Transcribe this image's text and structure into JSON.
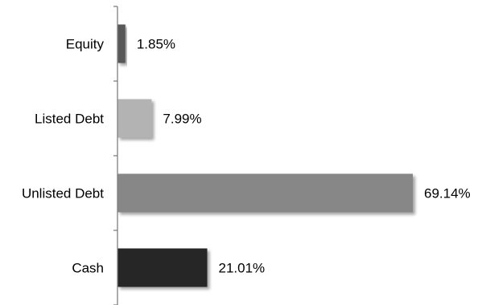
{
  "chart_data": {
    "type": "bar",
    "orientation": "horizontal",
    "categories": [
      "Equity",
      "Listed Debt",
      "Unlisted Debt",
      "Cash"
    ],
    "values": [
      1.85,
      7.99,
      69.14,
      21.01
    ],
    "value_labels": [
      "1.85%",
      "7.99%",
      "69.14%",
      "21.01%"
    ],
    "colors": [
      "#595959",
      "#b3b3b3",
      "#878787",
      "#252525"
    ],
    "xlim": [
      0,
      69.14
    ],
    "grid": false,
    "legend": "none"
  }
}
